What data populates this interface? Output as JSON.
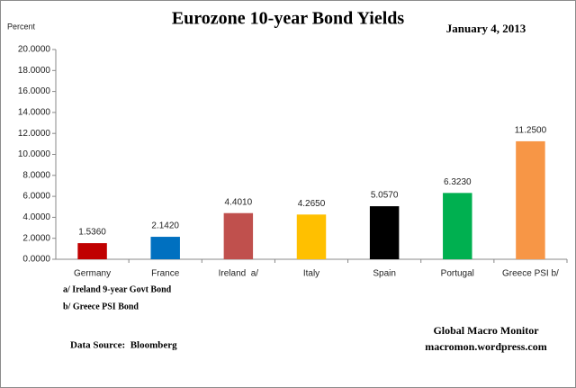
{
  "chart_data": {
    "type": "bar",
    "title": "Eurozone 10-year Bond Yields",
    "subtitle": "January 4, 2013",
    "y_label": "Percent",
    "categories": [
      "Germany",
      "France",
      "Ireland  a/",
      "Italy",
      "Spain",
      "Portugal",
      "Greece PSI b/"
    ],
    "values": [
      1.536,
      2.142,
      4.401,
      4.265,
      5.057,
      6.323,
      11.25
    ],
    "value_labels": [
      "1.5360",
      "2.1420",
      "4.4010",
      "4.2650",
      "5.0570",
      "6.3230",
      "11.2500"
    ],
    "colors": [
      "#c00000",
      "#0070c0",
      "#c0504d",
      "#ffc000",
      "#000000",
      "#00b050",
      "#f79646"
    ],
    "ylim": [
      0,
      20
    ],
    "yticks": [
      {
        "value": 0,
        "label": "0.0000"
      },
      {
        "value": 2,
        "label": "2.0000"
      },
      {
        "value": 4,
        "label": "4.0000"
      },
      {
        "value": 6,
        "label": "6.0000"
      },
      {
        "value": 8,
        "label": "8.0000"
      },
      {
        "value": 10,
        "label": "10.0000"
      },
      {
        "value": 12,
        "label": "12.0000"
      },
      {
        "value": 14,
        "label": "14.0000"
      },
      {
        "value": 16,
        "label": "16.0000"
      },
      {
        "value": 18,
        "label": "18.0000"
      },
      {
        "value": 20,
        "label": "20.0000"
      }
    ],
    "grid": false,
    "notes": [
      "a/ Ireland 9-year Govt Bond",
      "b/ Greece PSI Bond"
    ],
    "source": "Data Source:  Bloomberg",
    "credit": [
      "Global Macro Monitor",
      "macromon.wordpress.com"
    ]
  }
}
